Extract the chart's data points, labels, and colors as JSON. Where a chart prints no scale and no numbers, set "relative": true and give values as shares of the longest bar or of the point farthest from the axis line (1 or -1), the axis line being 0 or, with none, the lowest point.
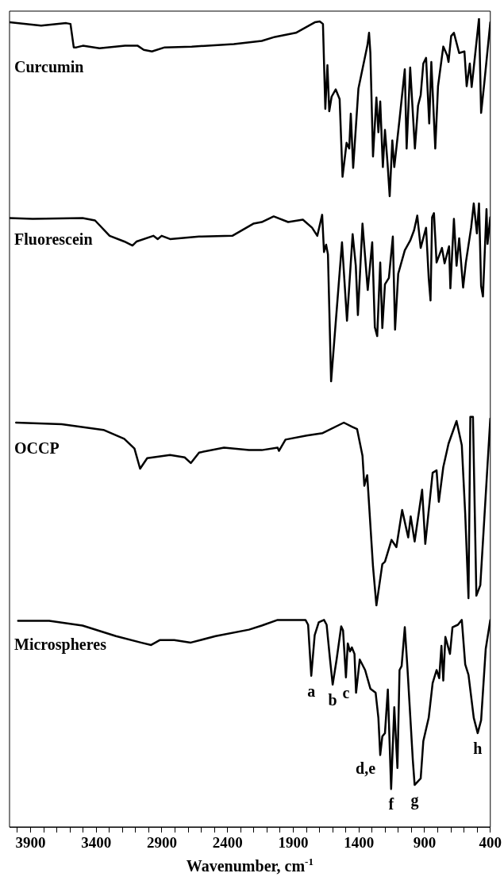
{
  "chart_data": {
    "type": "line",
    "relative": true,
    "xlabel": "Wavenumber, cm$^{-1}$",
    "xlim": [
      4060,
      400
    ],
    "xticks": [
      {
        "value": 4000,
        "label": null
      },
      3900,
      {
        "value": 3800,
        "label": null
      },
      {
        "value": 3700,
        "label": null
      },
      {
        "value": 3600,
        "label": null
      },
      {
        "value": 3500,
        "label": null
      },
      3400,
      {
        "value": 3300,
        "label": null
      },
      {
        "value": 3200,
        "label": null
      },
      {
        "value": 3100,
        "label": null
      },
      {
        "value": 3000,
        "label": null
      },
      2900,
      {
        "value": 2800,
        "label": null
      },
      {
        "value": 2700,
        "label": null
      },
      {
        "value": 2600,
        "label": null
      },
      {
        "value": 2500,
        "label": null
      },
      2400,
      {
        "value": 2300,
        "label": null
      },
      {
        "value": 2200,
        "label": null
      },
      {
        "value": 2100,
        "label": null
      },
      {
        "value": 2000,
        "label": null
      },
      1900,
      {
        "value": 1800,
        "label": null
      },
      {
        "value": 1700,
        "label": null
      },
      {
        "value": 1600,
        "label": null
      },
      {
        "value": 1500,
        "label": null
      },
      1400,
      {
        "value": 1300,
        "label": null
      },
      {
        "value": 1200,
        "label": null
      },
      {
        "value": 1100,
        "label": null
      },
      {
        "value": 1000,
        "label": null
      },
      900,
      {
        "value": 800,
        "label": null
      },
      {
        "value": 700,
        "label": null
      },
      {
        "value": 600,
        "label": null
      },
      {
        "value": 500,
        "label": null
      },
      400
    ],
    "grid": false,
    "marker": "none",
    "line_style": "solid",
    "series": [
      {
        "name": "Curcumin",
        "color": "#000000",
        "x": [
          4060,
          3819,
          3629,
          3596,
          3571,
          3551,
          3502,
          3375,
          3181,
          3084,
          3038,
          2976,
          2879,
          2673,
          2352,
          2140,
          2039,
          1880,
          1736,
          1698,
          1674,
          1656,
          1640,
          1626,
          1608,
          1577,
          1547,
          1525,
          1494,
          1474,
          1462,
          1444,
          1404,
          1335,
          1323,
          1313,
          1293,
          1267,
          1252,
          1238,
          1218,
          1202,
          1182,
          1166,
          1146,
          1131,
          1091,
          1051,
          1037,
          1010,
          974,
          950,
          930,
          910,
          889,
          865,
          849,
          819,
          798,
          758,
          728,
          718,
          698,
          677,
          637,
          597,
          580,
          556,
          542,
          526,
          486,
          470,
          445,
          400
        ],
        "values": [
          0.995,
          0.991,
          0.994,
          0.993,
          0.964,
          0.964,
          0.966,
          0.963,
          0.966,
          0.966,
          0.961,
          0.959,
          0.964,
          0.965,
          0.968,
          0.972,
          0.977,
          0.982,
          0.995,
          0.996,
          0.993,
          0.888,
          0.942,
          0.885,
          0.903,
          0.912,
          0.9,
          0.804,
          0.846,
          0.839,
          0.882,
          0.815,
          0.913,
          0.967,
          0.982,
          0.957,
          0.829,
          0.902,
          0.859,
          0.897,
          0.816,
          0.862,
          0.82,
          0.78,
          0.849,
          0.816,
          0.875,
          0.937,
          0.839,
          0.939,
          0.839,
          0.892,
          0.905,
          0.944,
          0.951,
          0.87,
          0.946,
          0.839,
          0.916,
          0.965,
          0.954,
          0.946,
          0.978,
          0.982,
          0.957,
          0.959,
          0.916,
          0.944,
          0.915,
          0.939,
          1.0,
          0.883,
          0.921,
          0.995
        ]
      },
      {
        "name": "Fluorescein",
        "color": "#000000",
        "x": [
          4060,
          3884,
          3504,
          3409,
          3298,
          3187,
          3124,
          3092,
          2965,
          2932,
          2902,
          2838,
          2617,
          2364,
          2204,
          2140,
          2049,
          1939,
          1827,
          1757,
          1717,
          1680,
          1666,
          1650,
          1636,
          1612,
          1555,
          1529,
          1491,
          1448,
          1424,
          1408,
          1373,
          1333,
          1299,
          1279,
          1261,
          1238,
          1222,
          1202,
          1172,
          1142,
          1125,
          1101,
          1051,
          1010,
          980,
          956,
          930,
          889,
          869,
          855,
          843,
          829,
          809,
          768,
          748,
          714,
          704,
          677,
          657,
          637,
          607,
          586,
          546,
          526,
          502,
          486,
          470,
          456,
          429,
          421,
          400
        ],
        "values": [
          0.753,
          0.752,
          0.753,
          0.75,
          0.731,
          0.724,
          0.719,
          0.724,
          0.731,
          0.727,
          0.731,
          0.727,
          0.73,
          0.731,
          0.746,
          0.748,
          0.755,
          0.748,
          0.751,
          0.741,
          0.731,
          0.757,
          0.711,
          0.72,
          0.708,
          0.551,
          0.669,
          0.723,
          0.626,
          0.733,
          0.694,
          0.633,
          0.746,
          0.664,
          0.723,
          0.618,
          0.607,
          0.698,
          0.617,
          0.671,
          0.679,
          0.73,
          0.615,
          0.684,
          0.713,
          0.725,
          0.738,
          0.756,
          0.716,
          0.741,
          0.679,
          0.651,
          0.754,
          0.759,
          0.698,
          0.716,
          0.697,
          0.718,
          0.666,
          0.752,
          0.694,
          0.728,
          0.667,
          0.698,
          0.741,
          0.771,
          0.734,
          0.771,
          0.669,
          0.656,
          0.764,
          0.721,
          0.754
        ]
      },
      {
        "name": "OCCP",
        "color": "#000000",
        "x": [
          4010,
          3663,
          3345,
          3187,
          3109,
          3066,
          3012,
          2838,
          2727,
          2680,
          2617,
          2427,
          2237,
          2140,
          2019,
          2009,
          1959,
          1797,
          1676,
          1515,
          1454,
          1414,
          1373,
          1359,
          1337,
          1293,
          1267,
          1222,
          1202,
          1152,
          1115,
          1071,
          1025,
          1006,
          976,
          919,
          895,
          839,
          809,
          792,
          758,
          718,
          657,
          617,
          591,
          566,
          552,
          532,
          506,
          476,
          400
        ],
        "values": [
          0.5,
          0.498,
          0.491,
          0.48,
          0.468,
          0.443,
          0.456,
          0.46,
          0.457,
          0.45,
          0.463,
          0.469,
          0.466,
          0.466,
          0.469,
          0.465,
          0.479,
          0.484,
          0.487,
          0.5,
          0.495,
          0.492,
          0.459,
          0.422,
          0.435,
          0.322,
          0.274,
          0.325,
          0.328,
          0.355,
          0.346,
          0.392,
          0.358,
          0.384,
          0.353,
          0.417,
          0.35,
          0.438,
          0.441,
          0.402,
          0.445,
          0.474,
          0.502,
          0.472,
          0.387,
          0.283,
          0.507,
          0.507,
          0.286,
          0.299,
          0.505
        ]
      },
      {
        "name": "Microspheres",
        "color": "#000000",
        "x": [
          3995,
          3758,
          3504,
          3250,
          3060,
          2982,
          2917,
          2806,
          2680,
          2491,
          2237,
          2140,
          2019,
          1807,
          1787,
          1763,
          1737,
          1706,
          1666,
          1646,
          1620,
          1600,
          1571,
          1535,
          1521,
          1499,
          1485,
          1468,
          1454,
          1434,
          1422,
          1394,
          1353,
          1313,
          1273,
          1252,
          1238,
          1222,
          1202,
          1180,
          1155,
          1131,
          1107,
          1091,
          1075,
          1051,
          1031,
          990,
          976,
          930,
          910,
          869,
          839,
          809,
          789,
          772,
          758,
          742,
          707,
          688,
          647,
          617,
          591,
          566,
          526,
          496,
          470,
          435,
          400
        ],
        "values": [
          0.255,
          0.255,
          0.249,
          0.236,
          0.228,
          0.225,
          0.231,
          0.231,
          0.228,
          0.236,
          0.244,
          0.249,
          0.256,
          0.256,
          0.25,
          0.187,
          0.237,
          0.253,
          0.256,
          0.25,
          0.207,
          0.176,
          0.206,
          0.248,
          0.243,
          0.185,
          0.227,
          0.217,
          0.222,
          0.214,
          0.166,
          0.207,
          0.194,
          0.171,
          0.166,
          0.135,
          0.089,
          0.112,
          0.116,
          0.17,
          0.047,
          0.148,
          0.073,
          0.194,
          0.199,
          0.247,
          0.197,
          0.083,
          0.052,
          0.06,
          0.106,
          0.135,
          0.178,
          0.194,
          0.184,
          0.224,
          0.181,
          0.235,
          0.214,
          0.247,
          0.25,
          0.256,
          0.201,
          0.188,
          0.135,
          0.116,
          0.132,
          0.22,
          0.256
        ]
      }
    ],
    "annotations": [
      {
        "text": "a",
        "x": 1763,
        "y": 0.187
      },
      {
        "text": "b",
        "x": 1600,
        "y": 0.176
      },
      {
        "text": "c",
        "x": 1499,
        "y": 0.185
      },
      {
        "text": "d,e",
        "x": 1238,
        "y": 0.089
      },
      {
        "text": "f",
        "x": 1155,
        "y": 0.047
      },
      {
        "text": "g",
        "x": 976,
        "y": 0.052
      },
      {
        "text": "h",
        "x": 496,
        "y": 0.116
      }
    ]
  }
}
